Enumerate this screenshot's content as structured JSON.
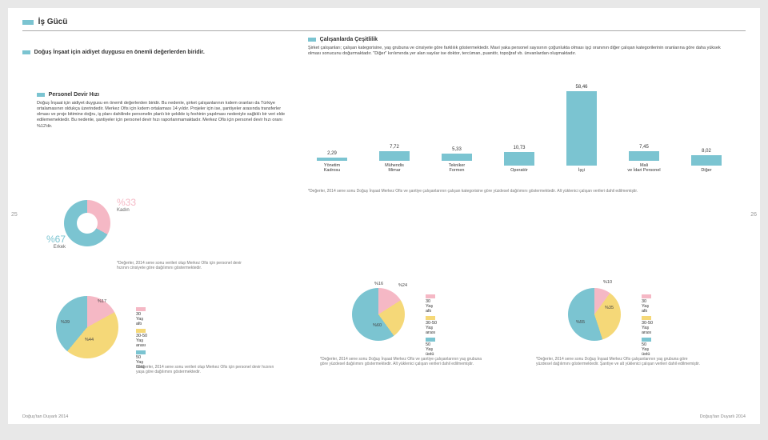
{
  "header": {
    "title": "İş Gücü"
  },
  "section_intro": {
    "text": "Doğuş İnşaat için aidiyet duygusu en önemli değerlerden biridir."
  },
  "diversity": {
    "title": "Çalışanlarda Çeşitlilik",
    "body": "Şirket çalışanları; çalışan kategorisine, yaş grubuna ve cinsiyete göre farklılık göstermektedir. Mavi yaka personel sayısının çoğunlukta olması işçi oranının diğer çalışan kategorilerinin oranlarına göre daha yüksek olması sonucunu doğurmaktadır. \"Diğer\" kırılımında yer alan sayılar ise doktor, tercüman, puantör, topoğraf vb. ünvanlardan oluşmaktadır."
  },
  "turnover": {
    "title": "Personel Devir Hızı",
    "body": "Doğuş İnşaat için aidiyet duygusu en önemli değerlerden biridir. Bu nedenle, şirket çalışanlarının kıdem oranları da Türkiye ortalamasının oldukça üzerindedir. Merkez Ofis için kıdem ortalaması 14 yıldır. Projeler için ise, şantiyeler arasında transferler olması ve proje bitimine doğru, iş planı dahilinde personelin planlı bir şekilde iş feshinin yapılması nedeniyle sağlıklı bir veri elde edilememektedir. Bu nedenle, şantiyeler için personel devir hızı raporlanmamaktadır. Merkez Ofis için personel devir hızı oranı %12'dir."
  },
  "barchart": {
    "categories": [
      "Yönetim Kadrosu",
      "Mühendis Mimar",
      "Tekniker Formen",
      "Operatör",
      "İşçi",
      "Mali ve İdari Personel",
      "Diğer"
    ],
    "values": [
      2.29,
      7.72,
      5.33,
      10.73,
      58.46,
      7.45,
      8.02
    ],
    "max": 60,
    "color": "#7bc4d1",
    "note": "*Değerler, 2014 sene sonu Doğuş İnşaat Merkez Ofis ve şantiye çalışanlarının çalışan kategorisine göre yüzdesel dağılımını göstermektedir. Alt yüklenici çalışan verileri dahil edilmemiştir."
  },
  "gender": {
    "male_pct": "%67",
    "male_label": "Erkek",
    "female_pct": "%33",
    "female_label": "Kadın",
    "note": "*Değerler, 2014 sene sonu verileri olup Merkez Ofis için personel devir hızının cinsiyete göre dağılımını göstermektedir."
  },
  "age_legend": {
    "items": [
      "30 Yaş altı",
      "30-50 Yaş arası",
      "50 Yaş üstü"
    ],
    "colors": [
      "#f5b8c5",
      "#f5d878",
      "#7bc4d1"
    ]
  },
  "pie1": {
    "values": [
      17,
      44,
      39
    ],
    "labels": [
      "%17",
      "%44",
      "%39"
    ],
    "note": "*Değerler, 2014 sene sonu verileri olup Merkez Ofis için personel devir hızının yaşa göre dağılımını göstermektedir."
  },
  "pie2": {
    "values": [
      16,
      24,
      60
    ],
    "labels": [
      "%16",
      "%24",
      "%60"
    ],
    "note": "*Değerler, 2014 sene sonu Doğuş İnşaat Merkez Ofis ve şantiye çalışanlarının yaş grubuna göre yüzdesel dağılımını göstermektedir. Alt yüklenici çalışan verileri dahil edilmemiştir."
  },
  "pie3": {
    "values": [
      10,
      35,
      55
    ],
    "labels": [
      "%10",
      "%35",
      "%55"
    ],
    "note": "*Değerler, 2014 sene sonu Doğuş İnşaat Merkez Ofis çalışanlarının yaş grubuna göre yüzdesel dağılımını göstermektedir. Şantiye ve alt yüklenici çalışan verileri dahil edilmemiştir."
  },
  "page_left": "25",
  "page_right": "26",
  "footer": "Doğuş'tan Duyarlı 2014"
}
